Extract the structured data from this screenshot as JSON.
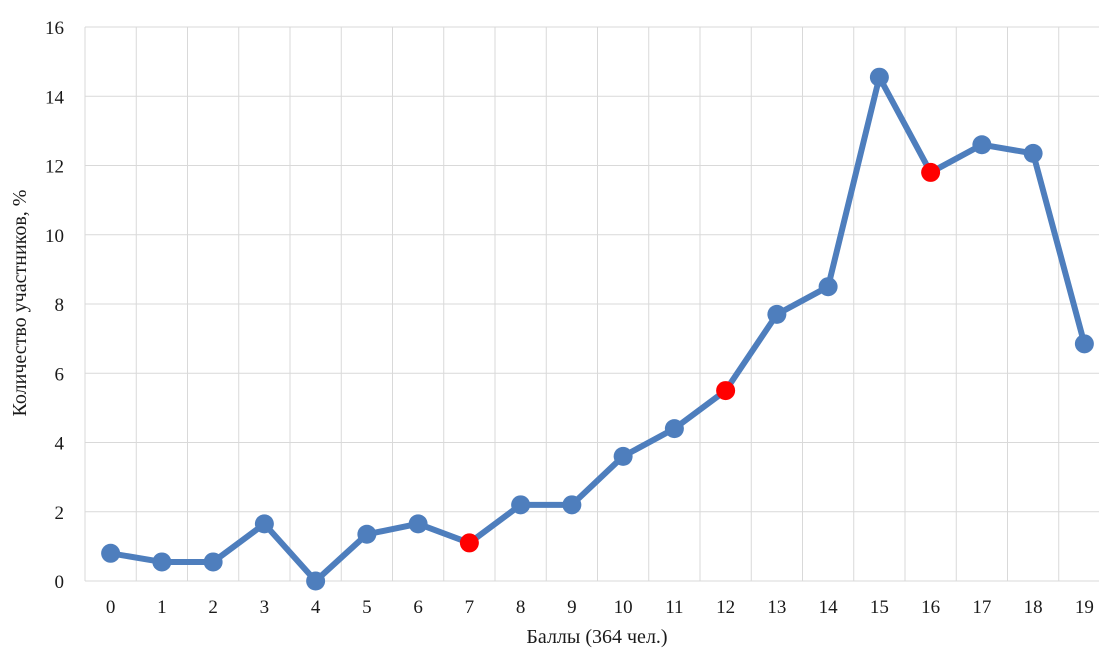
{
  "chart_data": {
    "type": "line",
    "xlabel": "Баллы (364 чел.)",
    "ylabel": "Количество участников, %",
    "x": [
      "0",
      "1",
      "2",
      "3",
      "4",
      "5",
      "6",
      "7",
      "8",
      "9",
      "10",
      "11",
      "12",
      "13",
      "14",
      "15",
      "16",
      "17",
      "18",
      "19"
    ],
    "series": [
      {
        "values": [
          0.8,
          0.55,
          0.55,
          1.65,
          0.0,
          1.35,
          1.65,
          1.1,
          2.2,
          2.2,
          3.6,
          4.4,
          5.5,
          7.7,
          8.5,
          14.55,
          11.8,
          12.6,
          12.35,
          6.85
        ],
        "color": "#4e7ebd",
        "highlight_indices": [
          7,
          12,
          16
        ],
        "highlight_color": "#ff0000"
      }
    ],
    "ylim": [
      0,
      16
    ],
    "yticks": [
      0,
      2,
      4,
      6,
      8,
      10,
      12,
      14,
      16
    ],
    "grid": true,
    "legend": "none"
  }
}
